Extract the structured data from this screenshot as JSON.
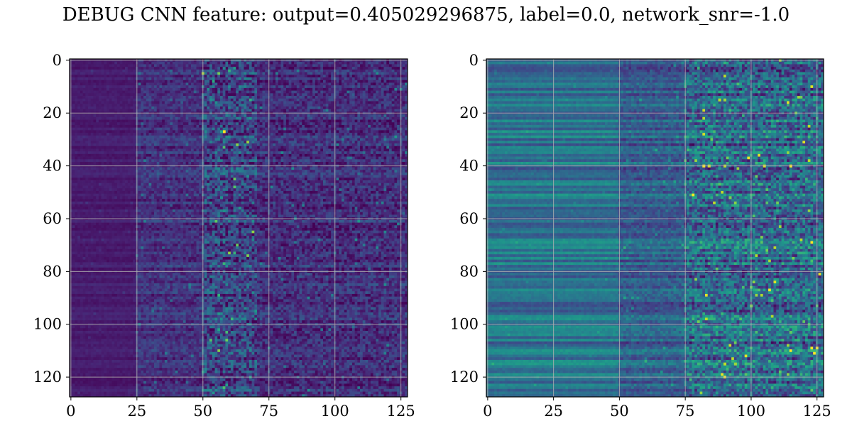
{
  "title": "DEBUG CNN feature: output=0.405029296875, label=0.0, network_snr=-1.0",
  "chart_data": [
    {
      "type": "heatmap",
      "title": "",
      "xlabel": "",
      "ylabel": "",
      "colormap": "viridis",
      "n_rows": 128,
      "n_cols": 128,
      "xlim": [
        0,
        127
      ],
      "ylim": [
        127,
        0
      ],
      "x_ticks": [
        0,
        25,
        50,
        75,
        100,
        125
      ],
      "y_ticks": [
        0,
        20,
        40,
        60,
        80,
        100,
        120
      ],
      "x_tick_labels": [
        "0",
        "25",
        "50",
        "75",
        "100",
        "125"
      ],
      "y_tick_labels": [
        "0",
        "20",
        "40",
        "60",
        "80",
        "100",
        "120"
      ],
      "grid": true,
      "value_profile": {
        "baseline": 0.1,
        "col_ranges": [
          {
            "from": 0,
            "to": 24,
            "mean": 0.08,
            "noise": 0.03
          },
          {
            "from": 25,
            "to": 49,
            "mean": 0.15,
            "noise": 0.12
          },
          {
            "from": 50,
            "to": 70,
            "mean": 0.22,
            "noise": 0.28
          },
          {
            "from": 71,
            "to": 127,
            "mean": 0.14,
            "noise": 0.16
          }
        ],
        "hotspots": [
          {
            "row": 27,
            "col": 58,
            "value": 1.0
          },
          {
            "row": 27,
            "col": 57,
            "value": 0.6
          },
          {
            "row": 3,
            "col": 58,
            "value": 0.45
          },
          {
            "row": 52,
            "col": 57,
            "value": 0.5
          },
          {
            "row": 57,
            "col": 58,
            "value": 0.5
          },
          {
            "row": 118,
            "col": 50,
            "value": 0.55
          }
        ]
      }
    },
    {
      "type": "heatmap",
      "title": "",
      "xlabel": "",
      "ylabel": "",
      "colormap": "viridis",
      "n_rows": 128,
      "n_cols": 128,
      "xlim": [
        0,
        127
      ],
      "ylim": [
        127,
        0
      ],
      "x_ticks": [
        0,
        25,
        50,
        75,
        100,
        125
      ],
      "y_ticks": [
        0,
        20,
        40,
        60,
        80,
        100,
        120
      ],
      "x_tick_labels": [
        "0",
        "25",
        "50",
        "75",
        "100",
        "125"
      ],
      "y_tick_labels": [
        "0",
        "20",
        "40",
        "60",
        "80",
        "100",
        "120"
      ],
      "grid": true,
      "value_profile": {
        "baseline": 0.35,
        "col_ranges": [
          {
            "from": 0,
            "to": 49,
            "mean": 0.38,
            "noise": 0.05
          },
          {
            "from": 50,
            "to": 74,
            "mean": 0.3,
            "noise": 0.12
          },
          {
            "from": 75,
            "to": 127,
            "mean": 0.35,
            "noise": 0.3
          }
        ],
        "hotspots": [
          {
            "row": 40,
            "col": 82,
            "value": 1.0
          },
          {
            "row": 40,
            "col": 84,
            "value": 0.95
          },
          {
            "row": 40,
            "col": 90,
            "value": 0.9
          },
          {
            "row": 40,
            "col": 105,
            "value": 0.95
          },
          {
            "row": 40,
            "col": 115,
            "value": 1.0
          },
          {
            "row": 15,
            "col": 88,
            "value": 0.9
          },
          {
            "row": 15,
            "col": 90,
            "value": 0.85
          },
          {
            "row": 52,
            "col": 92,
            "value": 0.8
          },
          {
            "row": 93,
            "col": 100,
            "value": 0.8
          },
          {
            "row": 115,
            "col": 90,
            "value": 0.9
          },
          {
            "row": 115,
            "col": 94,
            "value": 0.85
          },
          {
            "row": 103,
            "col": 115,
            "value": 0.75
          }
        ]
      }
    }
  ]
}
